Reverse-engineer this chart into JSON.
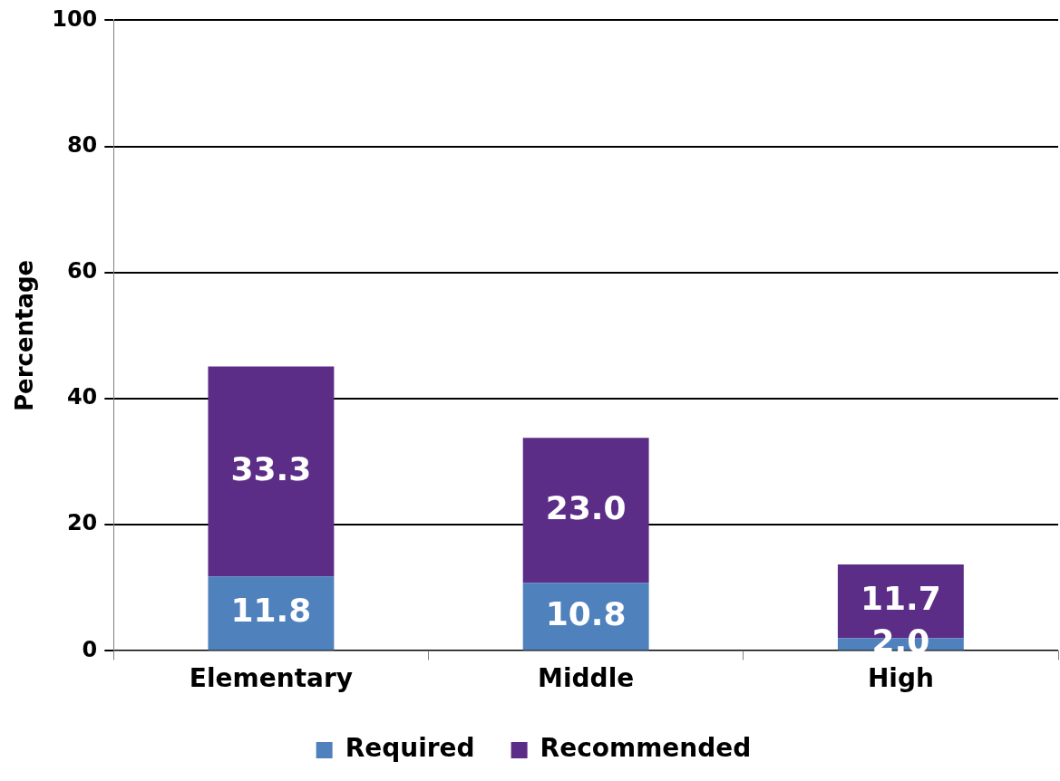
{
  "chart_data": {
    "type": "bar",
    "stacked": true,
    "ylabel": "Percentage",
    "categories": [
      "Elementary",
      "Middle",
      "High"
    ],
    "series": [
      {
        "name": "Required",
        "color": "#4f81bd",
        "values": [
          11.8,
          10.8,
          2.0
        ],
        "value_labels": [
          "11.8",
          "10.8",
          "2.0"
        ]
      },
      {
        "name": "Recommended",
        "color": "#5b2d87",
        "values": [
          33.3,
          23.0,
          11.7
        ],
        "value_labels": [
          "33.3",
          "23.0",
          "11.7"
        ]
      }
    ],
    "ylim": [
      0,
      100
    ],
    "yticks": [
      0,
      20,
      40,
      60,
      80,
      100
    ],
    "grid": "y",
    "legend": "bottom"
  }
}
